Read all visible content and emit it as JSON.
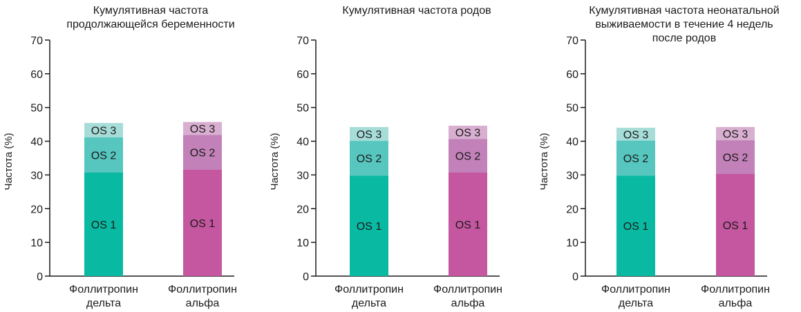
{
  "chart_data": [
    {
      "type": "bar",
      "stacked": true,
      "title": "Кумулятивная частота продолжающейся беременности",
      "title_lines": [
        "Кумулятивная частота",
        "продолжающейся беременности"
      ],
      "ylabel": "Частота (%)",
      "ylim": [
        0,
        70
      ],
      "yticks": [
        0,
        10,
        20,
        30,
        40,
        50,
        60,
        70
      ],
      "categories": [
        "Фоллитропин дельта",
        "Фоллитропин альфа"
      ],
      "category_lines": [
        [
          "Фоллитропин",
          "дельта"
        ],
        [
          "Фоллитропин",
          "альфа"
        ]
      ],
      "series": [
        {
          "name": "OS 1",
          "values": [
            30.7,
            31.6
          ]
        },
        {
          "name": "OS 2",
          "values": [
            10.5,
            10.3
          ]
        },
        {
          "name": "OS 3",
          "values": [
            4.2,
            3.8
          ]
        }
      ]
    },
    {
      "type": "bar",
      "stacked": true,
      "title": "Кумулятивная частота родов",
      "title_lines": [
        "Кумулятивная частота родов"
      ],
      "ylabel": "Частота (%)",
      "ylim": [
        0,
        70
      ],
      "yticks": [
        0,
        10,
        20,
        30,
        40,
        50,
        60,
        70
      ],
      "categories": [
        "Фоллитропин дельта",
        "Фоллитропин альфа"
      ],
      "category_lines": [
        [
          "Фоллитропин",
          "дельта"
        ],
        [
          "Фоллитропин",
          "альфа"
        ]
      ],
      "series": [
        {
          "name": "OS 1",
          "values": [
            29.8,
            30.7
          ]
        },
        {
          "name": "OS 2",
          "values": [
            10.3,
            10.0
          ]
        },
        {
          "name": "OS 3",
          "values": [
            4.1,
            3.9
          ]
        }
      ]
    },
    {
      "type": "bar",
      "stacked": true,
      "title": "Кумулятивная частота неонатальной выживаемости в течение 4 недель после родов",
      "title_lines": [
        "Кумулятивная частота неонатальной",
        "выживаемости в течение 4 недель",
        "после родов"
      ],
      "ylabel": "Частота (%)",
      "ylim": [
        0,
        70
      ],
      "yticks": [
        0,
        10,
        20,
        30,
        40,
        50,
        60,
        70
      ],
      "categories": [
        "Фоллитропин дельта",
        "Фоллитропин альфа"
      ],
      "category_lines": [
        [
          "Фоллитропин",
          "дельта"
        ],
        [
          "Фоллитропин",
          "альфа"
        ]
      ],
      "series": [
        {
          "name": "OS 1",
          "values": [
            29.8,
            30.3
          ]
        },
        {
          "name": "OS 2",
          "values": [
            10.4,
            10.0
          ]
        },
        {
          "name": "OS 3",
          "values": [
            3.8,
            3.9
          ]
        }
      ]
    }
  ],
  "colors": {
    "delta": [
      "#0ab9a2",
      "#56c6bf",
      "#a7ddd8"
    ],
    "alfa": [
      "#c4579f",
      "#c281b8",
      "#d9afd1"
    ],
    "axis": "#1a1a1a",
    "text": "#1a1a1a"
  }
}
